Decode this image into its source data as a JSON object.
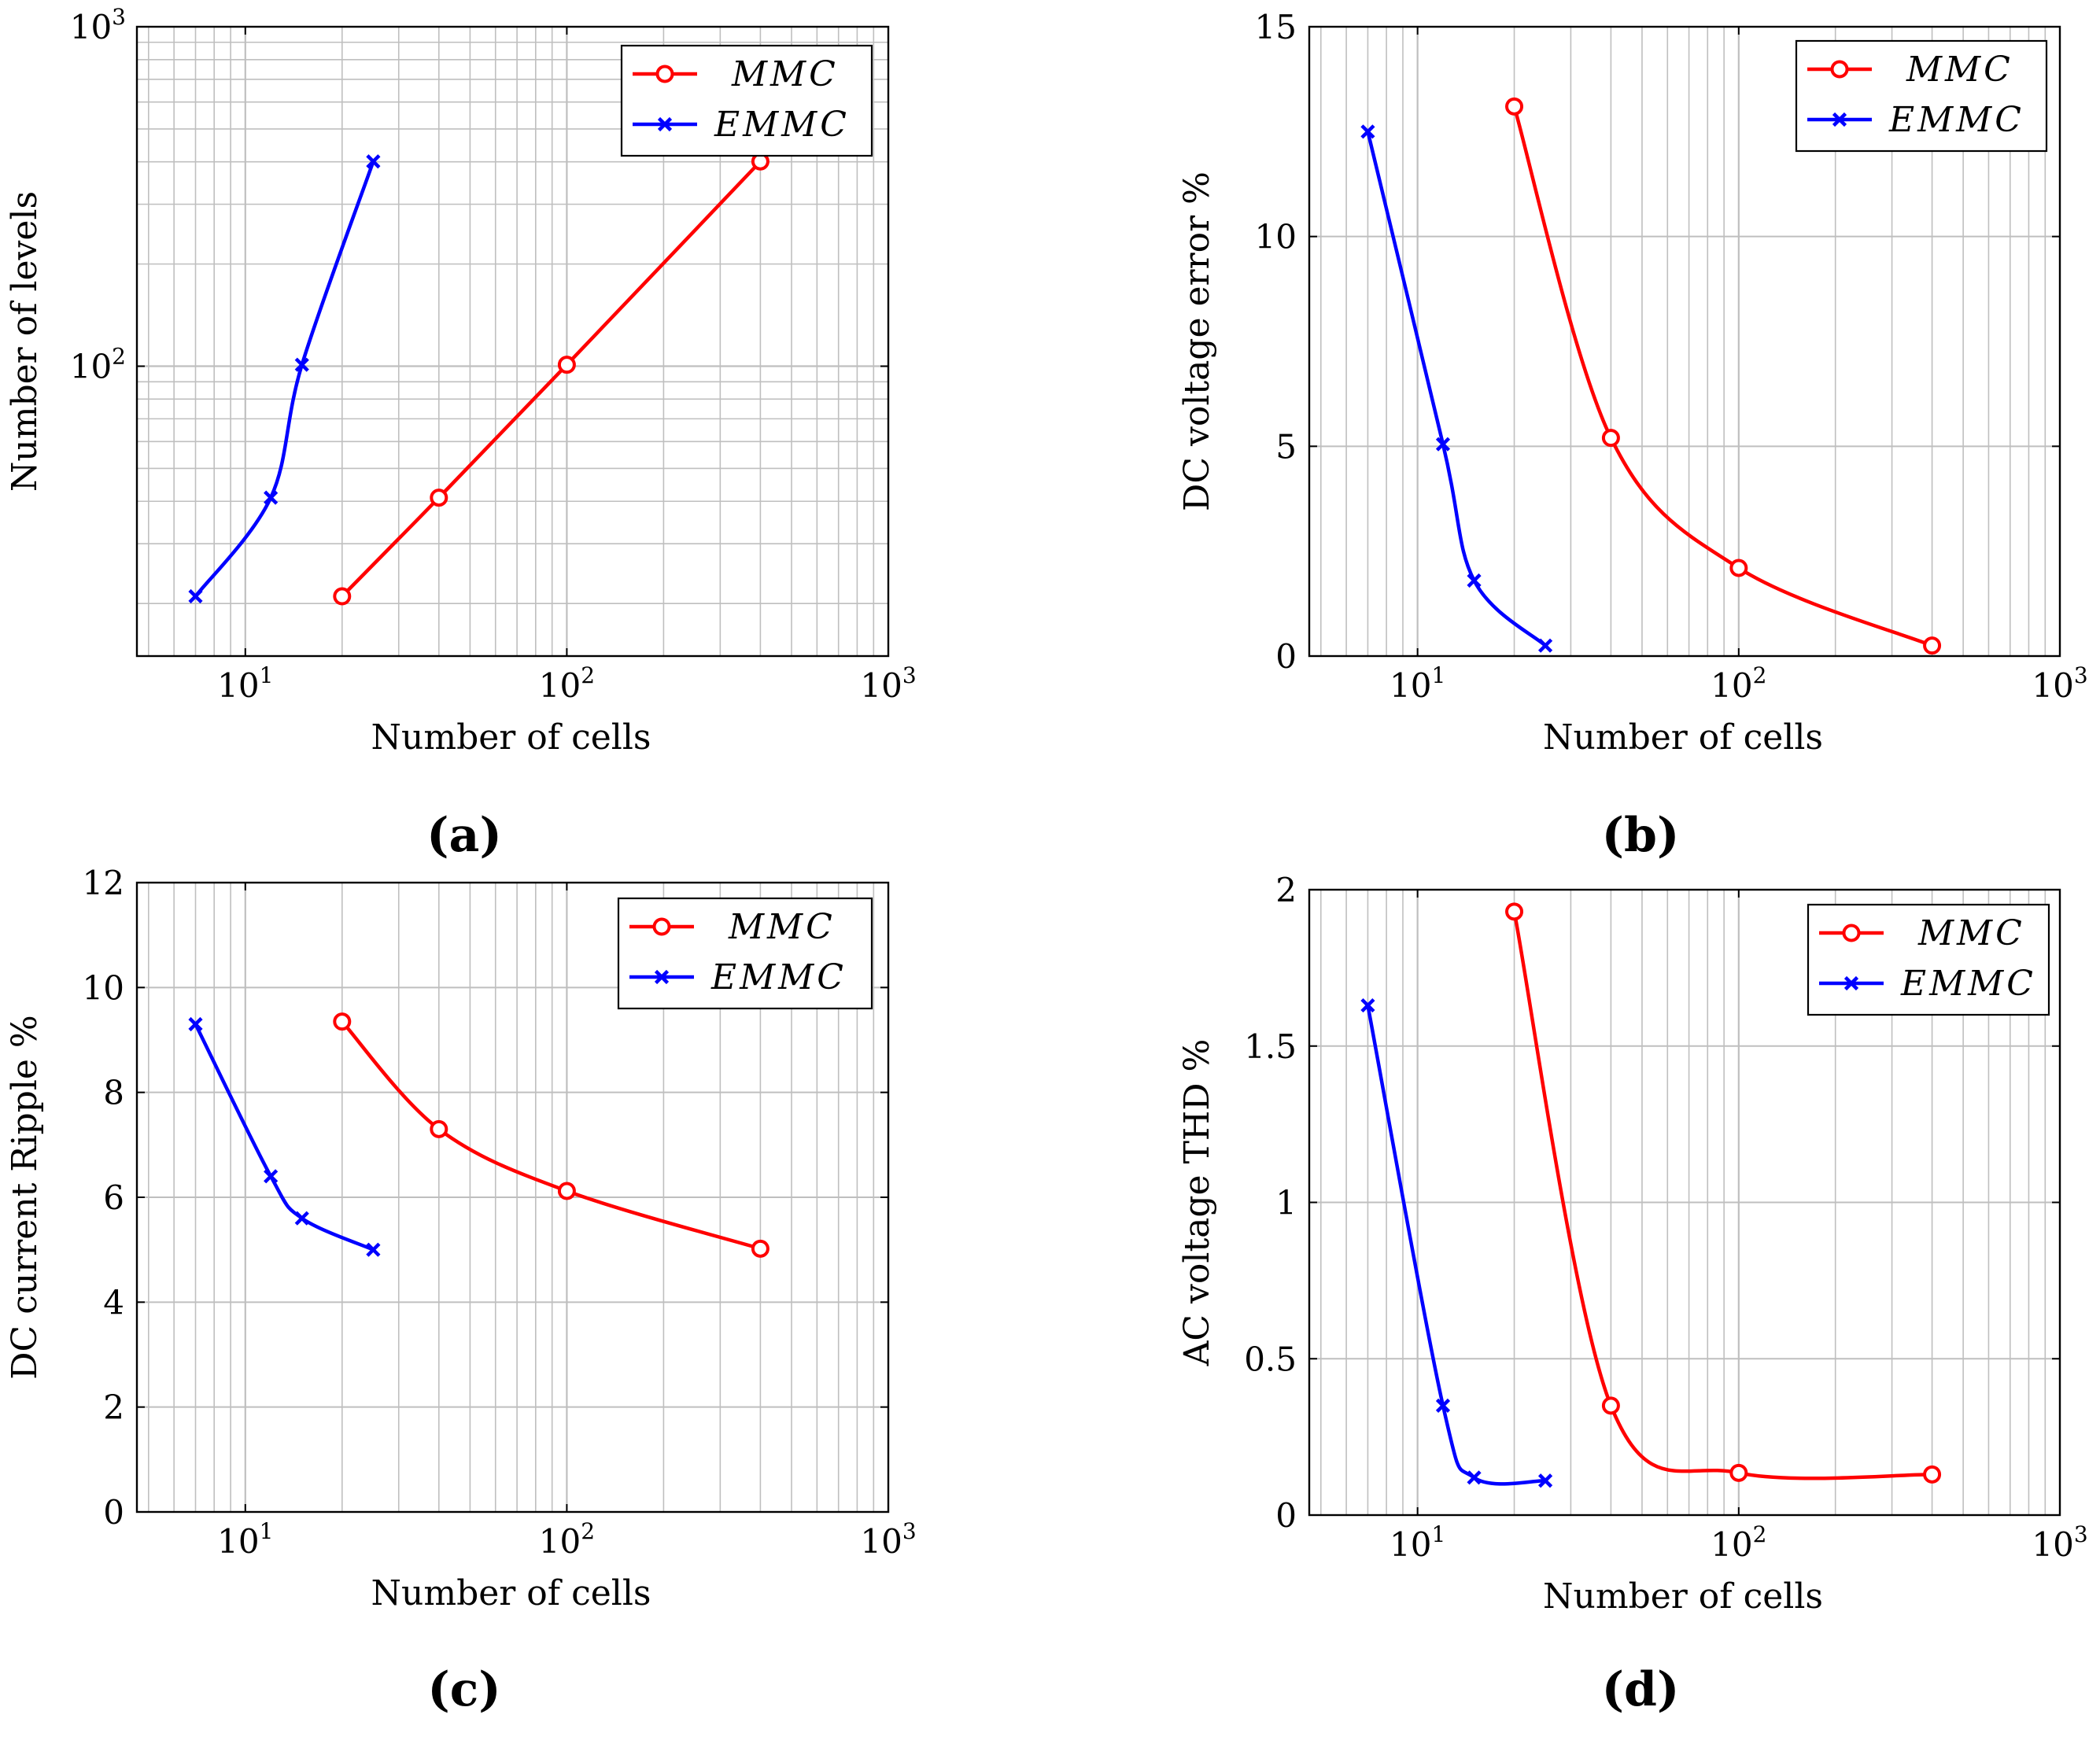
{
  "figure": {
    "panels": [
      {
        "id": "a",
        "caption": "(a)"
      },
      {
        "id": "b",
        "caption": "(b)"
      },
      {
        "id": "c",
        "caption": "(c)"
      },
      {
        "id": "d",
        "caption": "(d)"
      }
    ]
  },
  "colors": {
    "mmc": "#ff0000",
    "emmc": "#0000ff",
    "grid": "#bfbfbf",
    "axis": "#000000"
  },
  "chart_data": [
    {
      "panel": "a",
      "type": "line",
      "title": "",
      "xlabel": "Number of cells",
      "ylabel": "Number of levels",
      "xscale": "log",
      "yscale": "log",
      "xlim": [
        4.6,
        1000
      ],
      "ylim": [
        14,
        1000
      ],
      "x_ticks": [
        10,
        100,
        1000
      ],
      "x_tick_labels": [
        {
          "base": "10",
          "exp": "1"
        },
        {
          "base": "10",
          "exp": "2"
        },
        {
          "base": "10",
          "exp": "3"
        }
      ],
      "y_ticks": [
        100,
        1000
      ],
      "y_tick_labels": [
        {
          "base": "10",
          "exp": "2"
        },
        {
          "base": "10",
          "exp": "3"
        }
      ],
      "legend_position": "top-right",
      "series": [
        {
          "name": "MMC",
          "marker": "circle",
          "color": "#ff0000",
          "x": [
            20,
            40,
            100,
            400
          ],
          "y": [
            21,
            41,
            101,
            401
          ]
        },
        {
          "name": "EMMC",
          "marker": "x",
          "color": "#0000ff",
          "x": [
            7,
            12,
            15,
            25
          ],
          "y": [
            21,
            41,
            101,
            401
          ]
        }
      ]
    },
    {
      "panel": "b",
      "type": "line",
      "title": "",
      "xlabel": "Number of cells",
      "ylabel": "DC voltage error %",
      "xscale": "log",
      "yscale": "linear",
      "xlim": [
        4.6,
        1000
      ],
      "ylim": [
        0,
        15
      ],
      "x_ticks": [
        10,
        100,
        1000
      ],
      "x_tick_labels": [
        {
          "base": "10",
          "exp": "1"
        },
        {
          "base": "10",
          "exp": "2"
        },
        {
          "base": "10",
          "exp": "3"
        }
      ],
      "y_ticks": [
        0,
        5,
        10,
        15
      ],
      "y_tick_labels": [
        "0",
        "5",
        "10",
        "15"
      ],
      "legend_position": "top-right",
      "series": [
        {
          "name": "MMC",
          "marker": "circle",
          "color": "#ff0000",
          "x": [
            20,
            40,
            100,
            400
          ],
          "y": [
            13.1,
            5.2,
            2.1,
            0.25
          ]
        },
        {
          "name": "EMMC",
          "marker": "x",
          "color": "#0000ff",
          "x": [
            7,
            12,
            15,
            25
          ],
          "y": [
            12.5,
            5.05,
            1.8,
            0.25
          ]
        }
      ]
    },
    {
      "panel": "c",
      "type": "line",
      "title": "",
      "xlabel": "Number of cells",
      "ylabel": "DC current Ripple %",
      "xscale": "log",
      "yscale": "linear",
      "xlim": [
        4.6,
        1000
      ],
      "ylim": [
        0,
        12
      ],
      "x_ticks": [
        10,
        100,
        1000
      ],
      "x_tick_labels": [
        {
          "base": "10",
          "exp": "1"
        },
        {
          "base": "10",
          "exp": "2"
        },
        {
          "base": "10",
          "exp": "3"
        }
      ],
      "y_ticks": [
        0,
        2,
        4,
        6,
        8,
        10,
        12
      ],
      "y_tick_labels": [
        "0",
        "2",
        "4",
        "6",
        "8",
        "10",
        "12"
      ],
      "legend_position": "top-right",
      "series": [
        {
          "name": "MMC",
          "marker": "circle",
          "color": "#ff0000",
          "x": [
            20,
            40,
            100,
            400
          ],
          "y": [
            9.35,
            7.3,
            6.12,
            5.02
          ]
        },
        {
          "name": "EMMC",
          "marker": "x",
          "color": "#0000ff",
          "x": [
            7,
            12,
            15,
            25
          ],
          "y": [
            9.3,
            6.4,
            5.6,
            5.0
          ]
        }
      ]
    },
    {
      "panel": "d",
      "type": "line",
      "title": "",
      "xlabel": "Number of cells",
      "ylabel": "AC voltage THD %",
      "xscale": "log",
      "yscale": "linear",
      "xlim": [
        4.6,
        1000
      ],
      "ylim": [
        0,
        2
      ],
      "x_ticks": [
        10,
        100,
        1000
      ],
      "x_tick_labels": [
        {
          "base": "10",
          "exp": "1"
        },
        {
          "base": "10",
          "exp": "2"
        },
        {
          "base": "10",
          "exp": "3"
        }
      ],
      "y_ticks": [
        0,
        0.5,
        1,
        1.5,
        2
      ],
      "y_tick_labels": [
        "0",
        "0.5",
        "1",
        "1.5",
        "2"
      ],
      "legend_position": "top-right",
      "series": [
        {
          "name": "MMC",
          "marker": "circle",
          "color": "#ff0000",
          "x": [
            20,
            40,
            100,
            400
          ],
          "y": [
            1.93,
            0.35,
            0.135,
            0.13
          ]
        },
        {
          "name": "EMMC",
          "marker": "x",
          "color": "#0000ff",
          "x": [
            7,
            12,
            15,
            25
          ],
          "y": [
            1.63,
            0.35,
            0.12,
            0.11
          ]
        }
      ]
    }
  ]
}
